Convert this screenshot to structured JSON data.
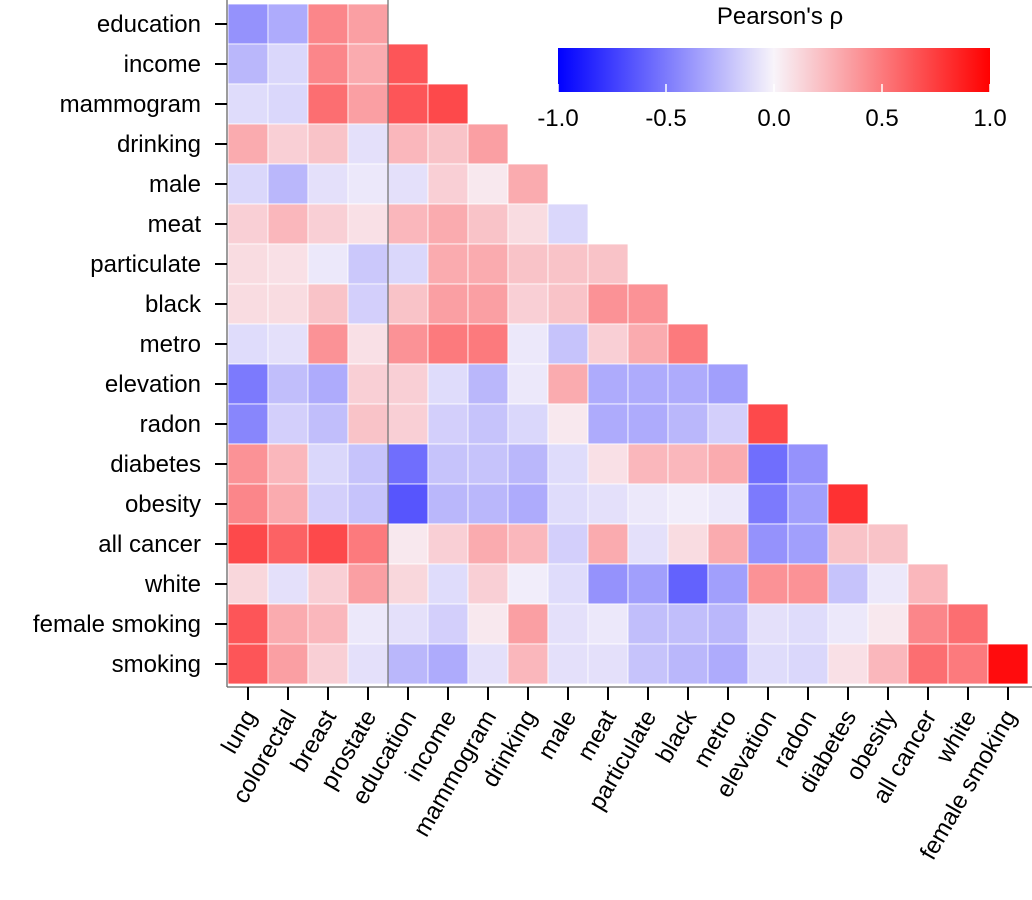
{
  "chart_data": {
    "type": "heatmap",
    "rows": [
      "education",
      "income",
      "mammogram",
      "drinking",
      "male",
      "meat",
      "particulate",
      "black",
      "metro",
      "elevation",
      "radon",
      "diabetes",
      "obesity",
      "all cancer",
      "white",
      "female smoking",
      "smoking"
    ],
    "columns": [
      "lung",
      "colorectal",
      "breast",
      "prostate",
      "education",
      "income",
      "mammogram",
      "drinking",
      "male",
      "meat",
      "particulate",
      "black",
      "metro",
      "elevation",
      "radon",
      "diabetes",
      "obesity",
      "all cancer",
      "white",
      "female smoking"
    ],
    "values": [
      [
        -0.4,
        -0.3,
        0.45,
        0.35
      ],
      [
        -0.25,
        -0.12,
        0.45,
        0.3,
        0.65
      ],
      [
        -0.1,
        -0.12,
        0.55,
        0.35,
        0.65,
        0.7
      ],
      [
        0.3,
        0.15,
        0.2,
        -0.08,
        0.25,
        0.2,
        0.35
      ],
      [
        -0.12,
        -0.25,
        -0.08,
        -0.05,
        -0.08,
        0.15,
        0.05,
        0.3
      ],
      [
        0.15,
        0.25,
        0.15,
        0.08,
        0.25,
        0.3,
        0.2,
        0.1,
        -0.12
      ],
      [
        0.1,
        0.08,
        -0.05,
        -0.18,
        -0.12,
        0.3,
        0.3,
        0.2,
        0.2,
        0.2
      ],
      [
        0.1,
        0.1,
        0.2,
        -0.15,
        0.2,
        0.35,
        0.35,
        0.15,
        0.2,
        0.4,
        0.4
      ],
      [
        -0.1,
        -0.08,
        0.4,
        0.08,
        0.4,
        0.5,
        0.5,
        -0.05,
        -0.2,
        0.15,
        0.3,
        0.5
      ],
      [
        -0.5,
        -0.22,
        -0.3,
        0.15,
        0.15,
        -0.1,
        -0.25,
        -0.05,
        0.3,
        -0.3,
        -0.3,
        -0.3,
        -0.35
      ],
      [
        -0.45,
        -0.15,
        -0.22,
        0.2,
        0.15,
        -0.15,
        -0.2,
        -0.12,
        0.05,
        -0.3,
        -0.3,
        -0.25,
        -0.15,
        0.7
      ],
      [
        0.4,
        0.25,
        -0.12,
        -0.2,
        -0.55,
        -0.2,
        -0.2,
        -0.25,
        -0.1,
        0.08,
        0.25,
        0.25,
        0.3,
        -0.55,
        -0.4
      ],
      [
        0.45,
        0.3,
        -0.15,
        -0.2,
        -0.65,
        -0.25,
        -0.25,
        -0.3,
        -0.1,
        -0.08,
        -0.05,
        -0.03,
        -0.05,
        -0.5,
        -0.35,
        0.8
      ],
      [
        0.7,
        0.6,
        0.7,
        0.5,
        0.05,
        0.15,
        0.3,
        0.25,
        -0.15,
        0.3,
        -0.08,
        0.1,
        0.3,
        -0.4,
        -0.35,
        0.2,
        0.2
      ],
      [
        0.12,
        -0.08,
        0.15,
        0.35,
        0.12,
        -0.1,
        0.15,
        -0.03,
        -0.1,
        -0.4,
        -0.35,
        -0.6,
        -0.35,
        0.4,
        0.4,
        -0.2,
        -0.05,
        0.25
      ],
      [
        0.65,
        0.3,
        0.25,
        -0.05,
        -0.08,
        -0.15,
        0.05,
        0.35,
        -0.08,
        -0.05,
        -0.22,
        -0.22,
        -0.25,
        -0.08,
        -0.1,
        -0.05,
        0.05,
        0.45,
        0.55
      ],
      [
        0.65,
        0.35,
        0.15,
        -0.08,
        -0.25,
        -0.3,
        -0.08,
        0.25,
        -0.08,
        -0.08,
        -0.2,
        -0.25,
        -0.3,
        -0.1,
        -0.12,
        0.08,
        0.25,
        0.55,
        0.5,
        0.95
      ]
    ],
    "legend": {
      "title": "Pearson's ρ",
      "range": [
        -1.0,
        1.0
      ],
      "ticks": [
        -1.0,
        -0.5,
        0.0,
        0.5,
        1.0
      ],
      "tick_labels": [
        "-1.0",
        "-0.5",
        "0.0",
        "0.5",
        "1.0"
      ],
      "colors": {
        "low": "#0000ff",
        "mid": "#f8f4fa",
        "high": "#ff0000"
      },
      "position": "top-right"
    },
    "divider_after_column": "prostate",
    "xlabel": "",
    "ylabel": "",
    "grid": false
  }
}
